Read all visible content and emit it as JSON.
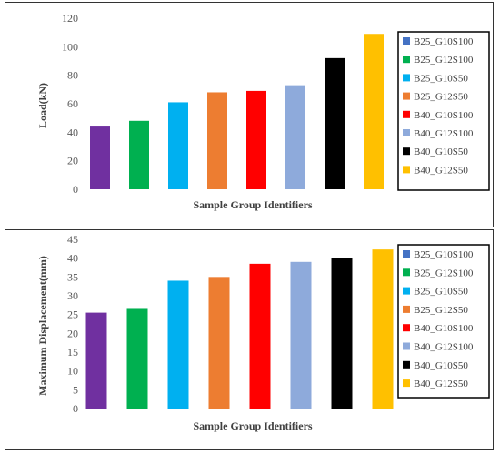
{
  "chart_data": [
    {
      "type": "bar",
      "categories": [
        "B25_G10S100",
        "B25_G12S100",
        "B25_G10S50",
        "B25_G12S50",
        "B40_G10S100",
        "B40_G12S100",
        "B40_G10S50",
        "B40_G12S50"
      ],
      "values": [
        44,
        48,
        61,
        68,
        69,
        73,
        92,
        109
      ],
      "bar_colors": [
        "#7030a0",
        "#00b050",
        "#00b0f0",
        "#ed7d31",
        "#ff0000",
        "#8eaadb",
        "#000000",
        "#ffc000"
      ],
      "legend_colors": [
        "#4472c4",
        "#00b050",
        "#00b0f0",
        "#ed7d31",
        "#ff0000",
        "#8eaadb",
        "#000000",
        "#ffc000"
      ],
      "xlabel": "Sample Group Identifiers",
      "ylabel": "Load(kN)",
      "ylim": [
        0,
        120
      ],
      "yticks": [
        0,
        20,
        40,
        60,
        80,
        100,
        120
      ],
      "grid": false,
      "legend_position": "right"
    },
    {
      "type": "bar",
      "categories": [
        "B25_G10S100",
        "B25_G12S100",
        "B25_G10S50",
        "B25_G12S50",
        "B40_G10S100",
        "B40_G12S100",
        "B40_G10S50",
        "B40_G12S50"
      ],
      "values": [
        25.5,
        26.5,
        34,
        35,
        38.5,
        39,
        40,
        42.3
      ],
      "bar_colors": [
        "#7030a0",
        "#00b050",
        "#00b0f0",
        "#ed7d31",
        "#ff0000",
        "#8eaadb",
        "#000000",
        "#ffc000"
      ],
      "legend_colors": [
        "#4472c4",
        "#00b050",
        "#00b0f0",
        "#ed7d31",
        "#ff0000",
        "#8eaadb",
        "#000000",
        "#ffc000"
      ],
      "xlabel": "Sample Group Identifiers",
      "ylabel": "Maximum Displacement(mm)",
      "ylim": [
        0,
        45
      ],
      "yticks": [
        0,
        5,
        10,
        15,
        20,
        25,
        30,
        35,
        40,
        45
      ],
      "grid": false,
      "legend_position": "right"
    }
  ]
}
